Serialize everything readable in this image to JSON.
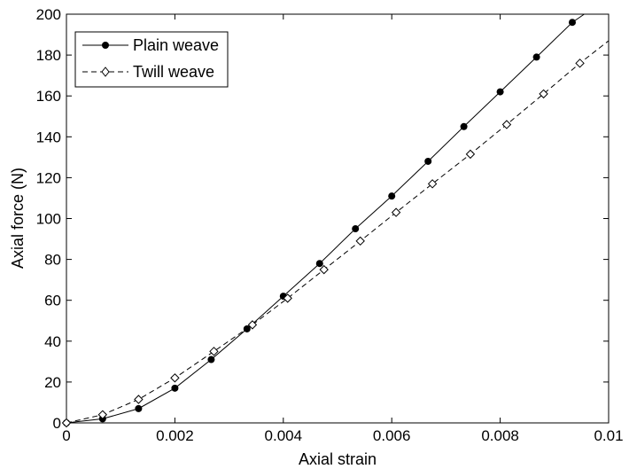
{
  "chart_data": {
    "type": "line",
    "xlabel": "Axial strain",
    "ylabel": "Axial force (N)",
    "xlim": [
      0,
      0.01
    ],
    "ylim": [
      0,
      200
    ],
    "x_ticks": [
      0,
      0.002,
      0.004,
      0.006,
      0.008,
      0.01
    ],
    "x_tick_labels": [
      "0",
      "0.002",
      "0.004",
      "0.006",
      "0.008",
      "0.01"
    ],
    "y_ticks": [
      0,
      20,
      40,
      60,
      80,
      100,
      120,
      140,
      160,
      180,
      200
    ],
    "y_tick_labels": [
      "0",
      "20",
      "40",
      "60",
      "80",
      "100",
      "120",
      "140",
      "160",
      "180",
      "200"
    ],
    "grid": false,
    "legend_position": "top-left",
    "series": [
      {
        "name": "Plain weave",
        "line_style": "solid",
        "marker": "filled-circle",
        "color": "#000000",
        "x": [
          0,
          0.000667,
          0.00133,
          0.002,
          0.00267,
          0.00333,
          0.004,
          0.00467,
          0.00533,
          0.006,
          0.00667,
          0.00733,
          0.008,
          0.00867,
          0.00933,
          0.00955
        ],
        "y": [
          0,
          2,
          7,
          17,
          31,
          46,
          62,
          78,
          95,
          111,
          128,
          145,
          162,
          179,
          196,
          200
        ]
      },
      {
        "name": "Twill weave",
        "line_style": "dashed",
        "marker": "open-diamond",
        "color": "#000000",
        "x": [
          0,
          0.000667,
          0.00133,
          0.002,
          0.00272,
          0.00343,
          0.00408,
          0.00475,
          0.00542,
          0.00608,
          0.00675,
          0.00745,
          0.00812,
          0.0088,
          0.00947,
          0.01
        ],
        "y": [
          0,
          4,
          11.5,
          22,
          35,
          48,
          61,
          75,
          89,
          103,
          117,
          131.5,
          146,
          161,
          176,
          187
        ]
      }
    ]
  }
}
